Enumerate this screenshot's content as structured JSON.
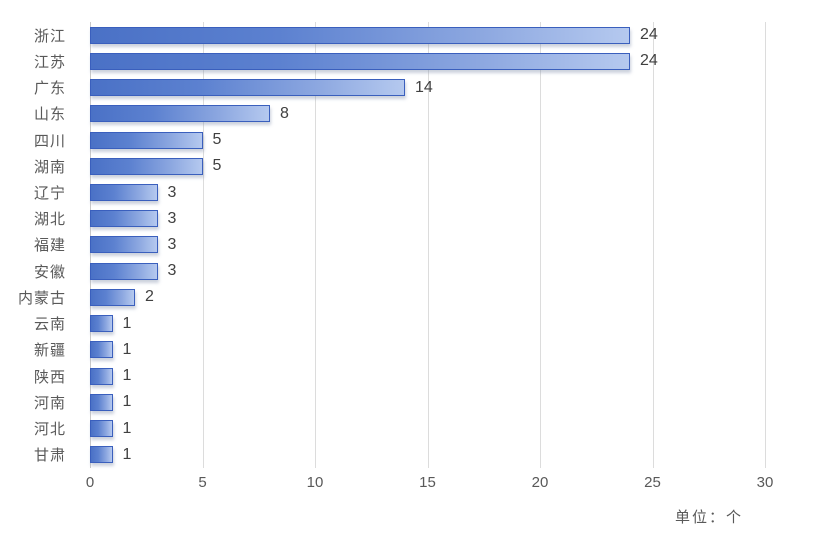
{
  "chart_data": {
    "type": "bar",
    "orientation": "horizontal",
    "title": "",
    "xlabel": "",
    "ylabel": "",
    "categories": [
      "浙江",
      "江苏",
      "广东",
      "山东",
      "四川",
      "湖南",
      "辽宁",
      "湖北",
      "福建",
      "安徽",
      "内蒙古",
      "云南",
      "新疆",
      "陕西",
      "河南",
      "河北",
      "甘肃"
    ],
    "values": [
      24,
      24,
      14,
      8,
      5,
      5,
      3,
      3,
      3,
      3,
      2,
      1,
      1,
      1,
      1,
      1,
      1
    ],
    "xlim": [
      0,
      30
    ],
    "x_ticks": [
      "0",
      "5",
      "10",
      "15",
      "20",
      "25",
      "30"
    ],
    "grid": true,
    "data_labels": true,
    "legend": "none",
    "unit_label": "单位：个",
    "colors": {
      "bar_fill_left": "#4a71c6",
      "bar_fill_right": "#b5c9ef",
      "bar_border": "#3a5fbd",
      "gridline": "#dcdcdc",
      "category_text": "#595959",
      "value_text": "#404040",
      "tick_text": "#595959",
      "background": "#ffffff"
    }
  }
}
